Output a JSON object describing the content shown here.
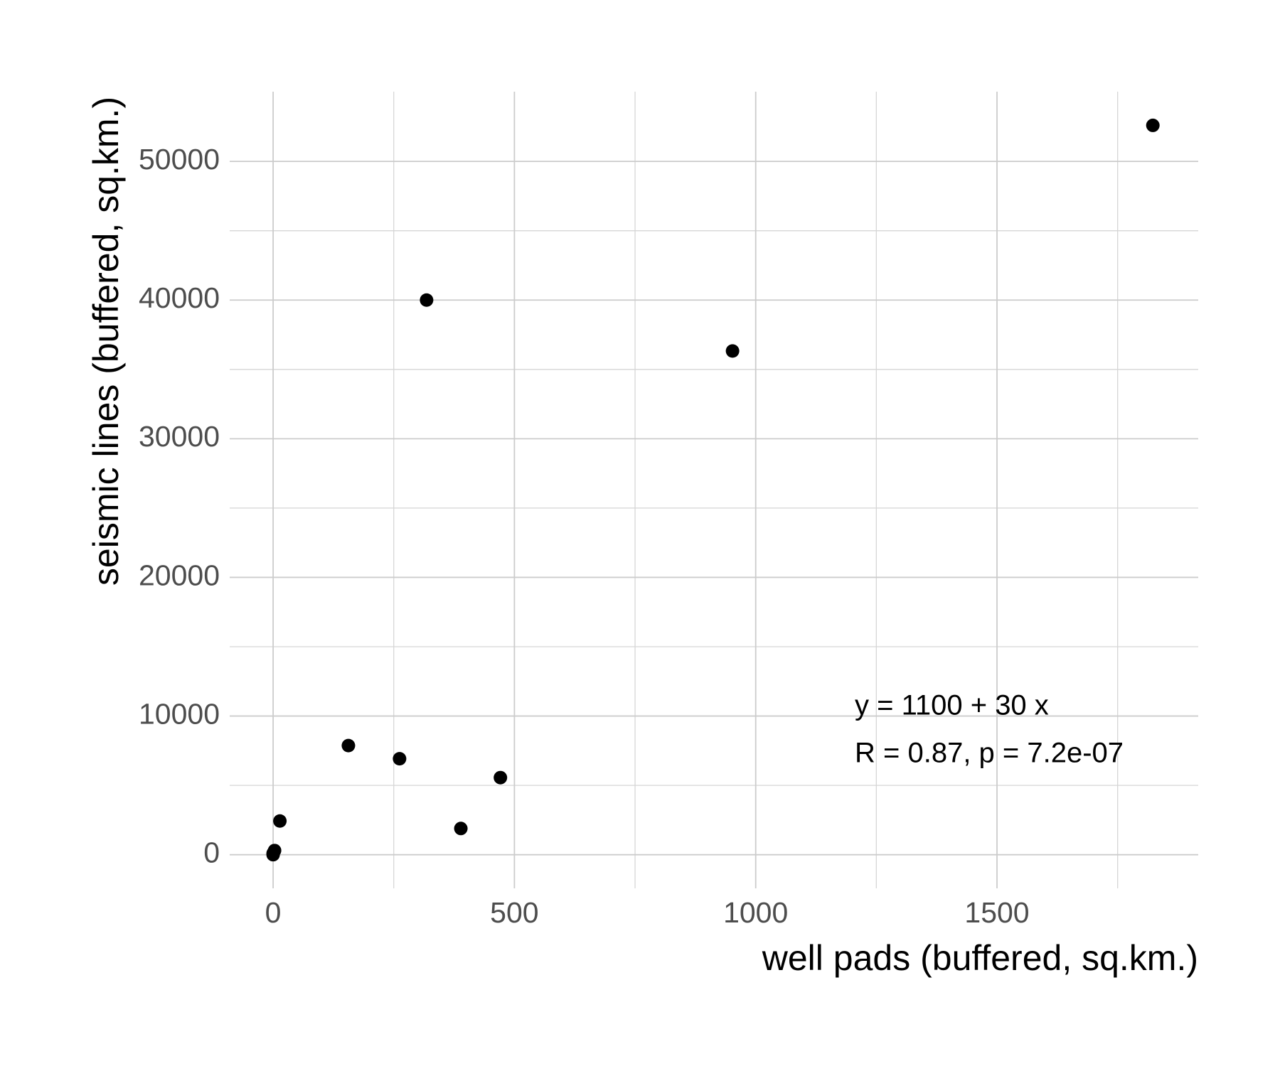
{
  "chart_data": {
    "type": "scatter",
    "x_label": "well pads (buffered, sq.km.)",
    "y_label": "seismic lines (buffered, sq.km.)",
    "annotations": [
      "y = 1100 + 30 x",
      "R = 0.87, p = 7.2e-07"
    ],
    "x": [
      0,
      3,
      0,
      14,
      156,
      262,
      318,
      389,
      471,
      952,
      1823
    ],
    "values": [
      0,
      300,
      100,
      2430,
      7870,
      6920,
      40000,
      1890,
      5560,
      36330,
      52600
    ],
    "color": "#000000",
    "xlim": [
      -90,
      1917
    ],
    "ylim": [
      -2426,
      55030
    ],
    "xticks": [
      0,
      500,
      1000,
      1500
    ],
    "yticks": [
      0,
      10000,
      20000,
      30000,
      40000,
      50000
    ],
    "x_minor_ticks": [
      250,
      750,
      1250,
      1750
    ],
    "y_minor_ticks": [
      5000,
      15000,
      25000,
      35000,
      45000
    ],
    "grid": true
  }
}
